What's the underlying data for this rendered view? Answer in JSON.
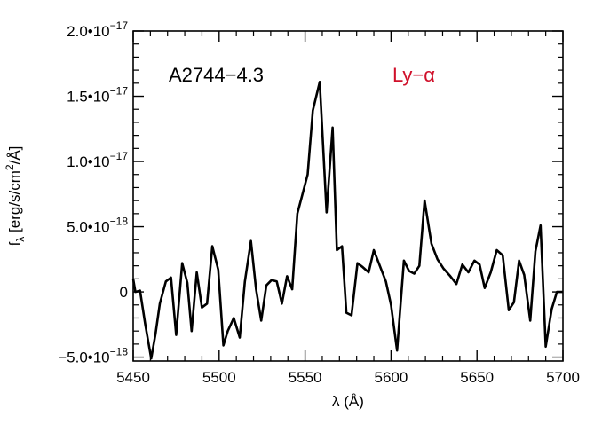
{
  "chart_data": {
    "type": "line",
    "xlabel": "λ (Å)",
    "ylabel_main": "f",
    "ylabel_sub": "λ",
    "ylabel_rest": " [erg/s/cm",
    "ylabel_sup": "2",
    "ylabel_end": "/Å]",
    "xlim": [
      5450,
      5700
    ],
    "ylim": [
      -5.3e-18,
      2e-17
    ],
    "grid": false,
    "legend": "none",
    "line_color": "#000000",
    "x_ticks": [
      {
        "value": 5450,
        "label": "5450"
      },
      {
        "value": 5500,
        "label": "5500"
      },
      {
        "value": 5550,
        "label": "5550"
      },
      {
        "value": 5600,
        "label": "5600"
      },
      {
        "value": 5650,
        "label": "5650"
      },
      {
        "value": 5700,
        "label": "5700"
      }
    ],
    "y_ticks": [
      {
        "value": -5e-18,
        "mantissa": "−5.0•10",
        "exponent": "−18"
      },
      {
        "value": 0,
        "mantissa": "0",
        "exponent": ""
      },
      {
        "value": 5e-18,
        "mantissa": "5.0•10",
        "exponent": "−18"
      },
      {
        "value": 1e-17,
        "mantissa": "1.0•10",
        "exponent": "−17"
      },
      {
        "value": 1.5e-17,
        "mantissa": "1.5•10",
        "exponent": "−17"
      },
      {
        "value": 2e-17,
        "mantissa": "2.0•10",
        "exponent": "−17"
      }
    ],
    "annotations": [
      {
        "text": "A2744−4.3",
        "color": "#000000"
      },
      {
        "text": "Ly−α",
        "color": "#d0102a"
      }
    ],
    "series": [
      {
        "x": [
          5450.0,
          5451.3,
          5454.0,
          5457.0,
          5460.5,
          5463.0,
          5465.5,
          5469.0,
          5472.0,
          5475.0,
          5478.5,
          5481.5,
          5484.0,
          5487.0,
          5490.0,
          5493.0,
          5496.0,
          5499.5,
          5502.5,
          5505.0,
          5508.5,
          5512.0,
          5515.0,
          5518.5,
          5521.5,
          5524.5,
          5527.5,
          5530.5,
          5533.5,
          5536.5,
          5539.5,
          5542.5,
          5545.5,
          5548.5,
          5551.5,
          5554.5,
          5558.5,
          5562.5,
          5566.0,
          5568.5,
          5571.5,
          5574.0,
          5577.0,
          5580.5,
          5583.5,
          5587.0,
          5590.0,
          5593.5,
          5597.0,
          5600.0,
          5603.5,
          5607.5,
          5610.5,
          5613.5,
          5616.5,
          5619.5,
          5623.5,
          5627.0,
          5630.5,
          5634.5,
          5638.0,
          5641.5,
          5645.0,
          5648.5,
          5651.5,
          5654.5,
          5658.0,
          5661.5,
          5665.0,
          5668.5,
          5671.5,
          5674.5,
          5677.5,
          5681.0,
          5684.0,
          5687.0,
          5690.0,
          5693.5,
          5696.5,
          5700.0
        ],
        "y": [
          1e-18,
          0.0,
          1e-19,
          -2.5e-18,
          -5.1e-18,
          -3.2e-18,
          -9e-19,
          8e-19,
          1.1e-18,
          -3.3e-18,
          2.2e-18,
          7e-19,
          -3e-18,
          1.5e-18,
          -1.2e-18,
          -9e-19,
          3.5e-18,
          1.7e-18,
          -4.1e-18,
          -3e-18,
          -2e-18,
          -3.5e-18,
          8e-19,
          3.9e-18,
          2e-19,
          -2.2e-18,
          5e-19,
          9e-19,
          8e-19,
          -9e-19,
          1.2e-18,
          2e-19,
          6e-18,
          7.5e-18,
          9e-18,
          1.39e-17,
          1.61e-17,
          6.1e-18,
          1.26e-17,
          3.2e-18,
          3.5e-18,
          -1.6e-18,
          -1.8e-18,
          2.2e-18,
          1.9e-18,
          1.5e-18,
          3.2e-18,
          2e-18,
          8e-19,
          -1e-18,
          -4.5e-18,
          2.4e-18,
          1.6e-18,
          1.4e-18,
          2e-18,
          7e-18,
          3.7e-18,
          2.5e-18,
          1.8e-18,
          1.2e-18,
          6e-19,
          2.1e-18,
          1.5e-18,
          2.4e-18,
          2.1e-18,
          3e-19,
          1.5e-18,
          3.2e-18,
          2.8e-18,
          -1.4e-18,
          -8e-19,
          2.4e-18,
          1.3e-18,
          -2.2e-18,
          3.1e-18,
          5.1e-18,
          -4.2e-18,
          -1.3e-18,
          0.0,
          0.0
        ]
      }
    ]
  }
}
